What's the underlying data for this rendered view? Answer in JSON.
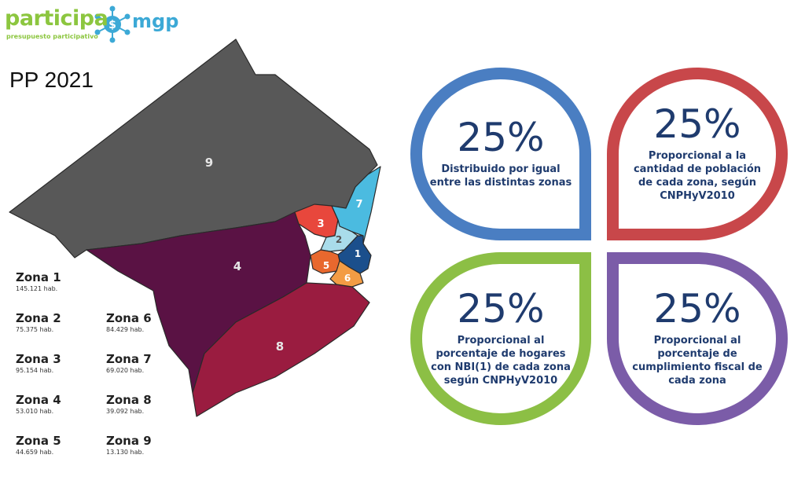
{
  "header": {
    "brand_left": "participa",
    "brand_right": "mgp",
    "brand_sub": "presupuesto participativo",
    "logo_icon": "dollar-network-icon"
  },
  "title": "PP 2021",
  "map": {
    "zones": [
      {
        "label": "1",
        "color": "#1b4f8c"
      },
      {
        "label": "2",
        "color": "#a9dcea"
      },
      {
        "label": "3",
        "color": "#e8473c"
      },
      {
        "label": "4",
        "color": "#5a1244"
      },
      {
        "label": "5",
        "color": "#e8682e"
      },
      {
        "label": "6",
        "color": "#f39c44"
      },
      {
        "label": "7",
        "color": "#4bbbe0"
      },
      {
        "label": "8",
        "color": "#9a1c40"
      },
      {
        "label": "9",
        "color": "#585858"
      }
    ]
  },
  "legend": [
    {
      "name": "Zona 1",
      "pop": "145.121 hab."
    },
    {
      "name": "Zona 2",
      "pop": "75.375 hab."
    },
    {
      "name": "Zona 3",
      "pop": "95.154 hab."
    },
    {
      "name": "Zona 4",
      "pop": "53.010 hab."
    },
    {
      "name": "Zona 5",
      "pop": "44.659 hab."
    },
    {
      "name": "Zona 6",
      "pop": "84.429 hab."
    },
    {
      "name": "Zona 7",
      "pop": "69.020 hab."
    },
    {
      "name": "Zona 8",
      "pop": "39.092 hab."
    },
    {
      "name": "Zona 9",
      "pop": "13.130 hab."
    }
  ],
  "criteria": [
    {
      "percent": "25%",
      "text": "Distribuido por igual\nentre las distintas zonas",
      "color": "#4a7ec2"
    },
    {
      "percent": "25%",
      "text": "Proporcional a la\ncantidad de población\nde cada zona, según\nCNPHyV2010",
      "color": "#c8474a"
    },
    {
      "percent": "25%",
      "text": "Proporcional al\nporcentaje de hogares\ncon NBI(1) de cada zona\nsegún CNPHyV2010",
      "color": "#8cbf45"
    },
    {
      "percent": "25%",
      "text": "Proporcional al\nporcentaje de\ncumplimiento fiscal de\ncada zona",
      "color": "#7b5ca8"
    }
  ]
}
